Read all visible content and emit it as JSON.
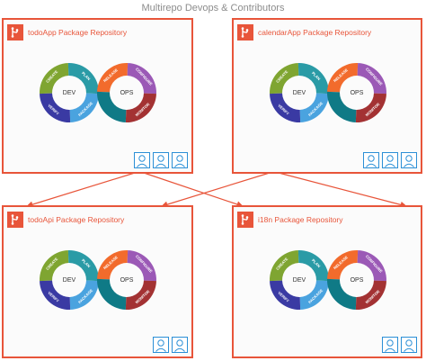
{
  "title": "Multirepo Devops & Contributors",
  "colors": {
    "accent": "#e8553a",
    "contributor": "#2b8fd6",
    "dev_green": "#7fa531",
    "dev_teal": "#2a9ba6",
    "dev_blue": "#4aa3df",
    "dev_navy": "#3a3aa3",
    "ops_orange": "#f26b2c",
    "ops_purple": "#9b59b6",
    "ops_maroon": "#a33233",
    "ops_teal": "#0f7a86"
  },
  "loop": {
    "dev_label": "DEV",
    "ops_label": "OPS",
    "stages": [
      "CREATE",
      "PLAN",
      "RELEASE",
      "CONFIGURE",
      "MONITOR",
      "PACKAGE",
      "VERIFY"
    ]
  },
  "repos": [
    {
      "title": "todoApp Package Repository",
      "contributors": 3
    },
    {
      "title": "calendarApp Package Repository",
      "contributors": 3
    },
    {
      "title": "todoApi Package Repository",
      "contributors": 2
    },
    {
      "title": "i18n Package Repository",
      "contributors": 2
    }
  ],
  "icons": {
    "repo": "git-icon",
    "contributor": "user-icon"
  }
}
